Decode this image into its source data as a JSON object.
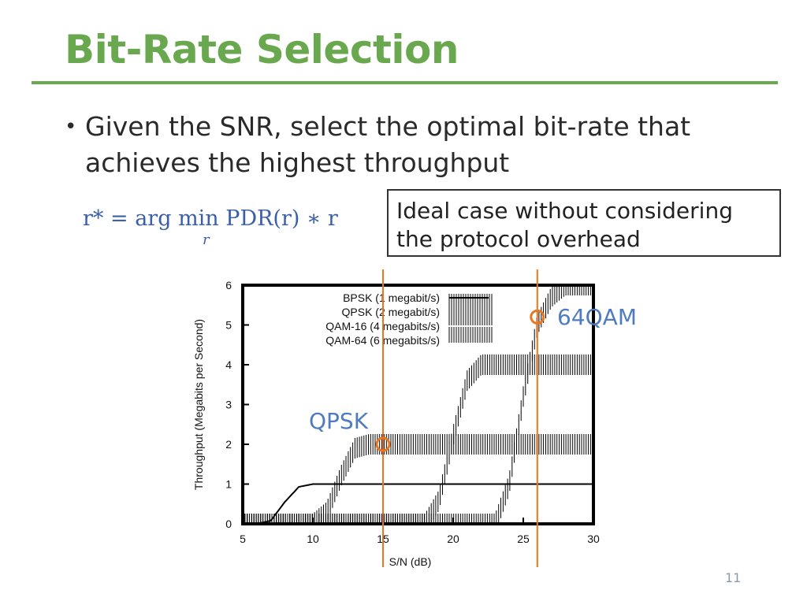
{
  "slide": {
    "title": "Bit-Rate Selection",
    "bullet_marker": "•",
    "bullet": "Given the SNR, select the optimal bit-rate that achieves the highest throughput",
    "formula": "r* = arg min PDR(r) ∗ r",
    "formula_sub": "r",
    "note": "Ideal case without considering the protocol overhead",
    "page_number": "11"
  },
  "chart_data": {
    "type": "line",
    "xlabel": "S/N (dB)",
    "ylabel": "Throughput (Megabits per Second)",
    "xlim": [
      5,
      30
    ],
    "ylim": [
      0,
      6
    ],
    "x_ticks": [
      "5",
      "10",
      "15",
      "20",
      "25",
      "30"
    ],
    "y_ticks": [
      "0",
      "1",
      "2",
      "3",
      "4",
      "5",
      "6"
    ],
    "series": [
      {
        "name": "BPSK (1 megabit/s)",
        "max": 1,
        "x": [
          5,
          6,
          7,
          8,
          9,
          10,
          12,
          15,
          20,
          25,
          30
        ],
        "y": [
          0,
          0,
          0.08,
          0.55,
          0.93,
          1.0,
          1.0,
          1.0,
          1.0,
          1.0,
          1.0
        ]
      },
      {
        "name": "QPSK (2 megabit/s)",
        "max": 2,
        "x": [
          5,
          10,
          11,
          12,
          13,
          14,
          15,
          20,
          25,
          30
        ],
        "y": [
          0,
          0,
          0.3,
          1.2,
          1.9,
          2.0,
          2.0,
          2.0,
          2.0,
          2.0
        ]
      },
      {
        "name": "QAM-16 (4 megabits/s)",
        "max": 4,
        "x": [
          5,
          18,
          19,
          20,
          21,
          22,
          25,
          30
        ],
        "y": [
          0,
          0,
          0.6,
          2.2,
          3.6,
          4.0,
          4.0,
          4.0
        ]
      },
      {
        "name": "QAM-64 (6 megabits/s)",
        "max": 6,
        "x": [
          5,
          23,
          24,
          25,
          26,
          27,
          28,
          30
        ],
        "y": [
          0,
          0,
          1.0,
          3.2,
          5.0,
          5.7,
          6.0,
          6.0
        ]
      }
    ],
    "annotations": [
      {
        "label": "QPSK",
        "x": 15,
        "y": 2.0,
        "color": "#e87722",
        "label_color": "#4f7cc1"
      },
      {
        "label": "64QAM",
        "x": 26,
        "y": 5.2,
        "color": "#e87722",
        "label_color": "#4f7cc1"
      }
    ],
    "grid": false,
    "legend": "top-left"
  }
}
